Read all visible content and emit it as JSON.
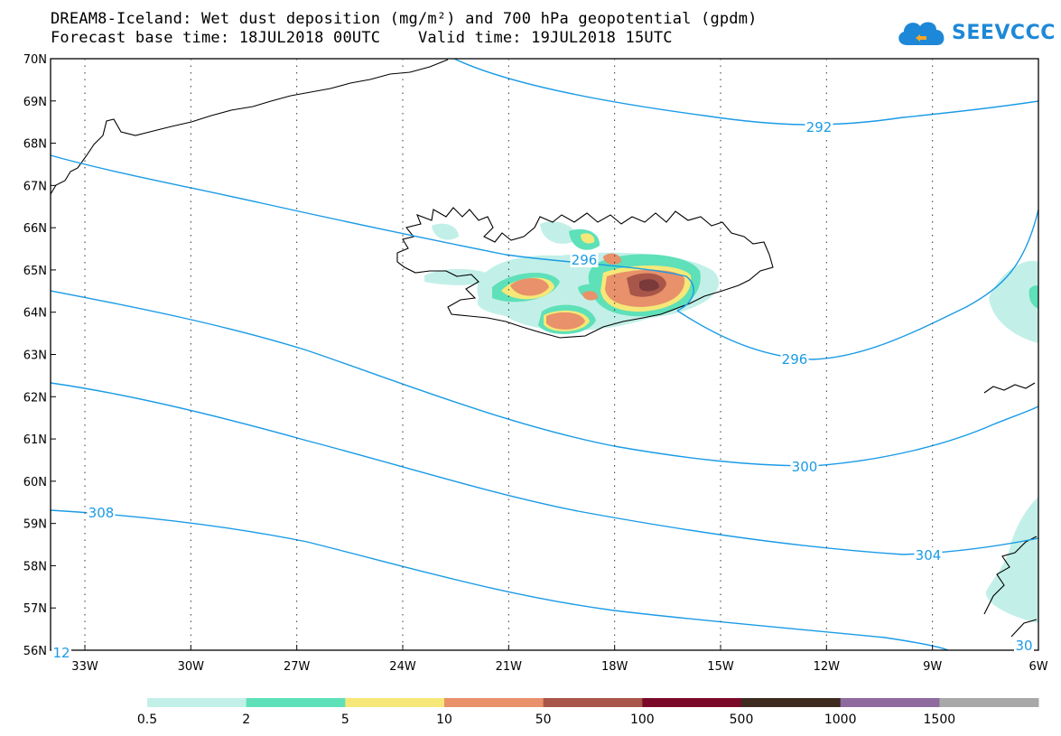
{
  "title": {
    "line1": "DREAM8-Iceland: Wet dust deposition (mg/m²) and 700 hPa geopotential (gpdm)",
    "line2": "Forecast base time: 18JUL2018 00UTC    Valid time: 19JUL2018 15UTC"
  },
  "logo": {
    "text": "SEEVCCC",
    "icon": "cloud-logo-icon"
  },
  "map": {
    "lat_labels": [
      "70N",
      "69N",
      "68N",
      "67N",
      "66N",
      "65N",
      "64N",
      "63N",
      "62N",
      "61N",
      "60N",
      "59N",
      "58N",
      "57N",
      "56N"
    ],
    "lon_labels": [
      "33W",
      "30W",
      "27W",
      "24W",
      "21W",
      "18W",
      "15W",
      "12W",
      "9W",
      "6W"
    ],
    "grid": "dotted",
    "contour_color": "#1a9be6",
    "contour_labels": [
      "292",
      "296",
      "296",
      "300",
      "304",
      "308",
      "30",
      "12"
    ]
  },
  "legend": {
    "colors": [
      "#c2f0e8",
      "#5ee0b8",
      "#f5e878",
      "#e8916a",
      "#a8564a",
      "#7a0a28",
      "#3e2a1e",
      "#8e6a9e",
      "#a8a8a8"
    ],
    "labels": [
      "0.5",
      "2",
      "5",
      "10",
      "50",
      "100",
      "500",
      "1000",
      "1500"
    ]
  }
}
